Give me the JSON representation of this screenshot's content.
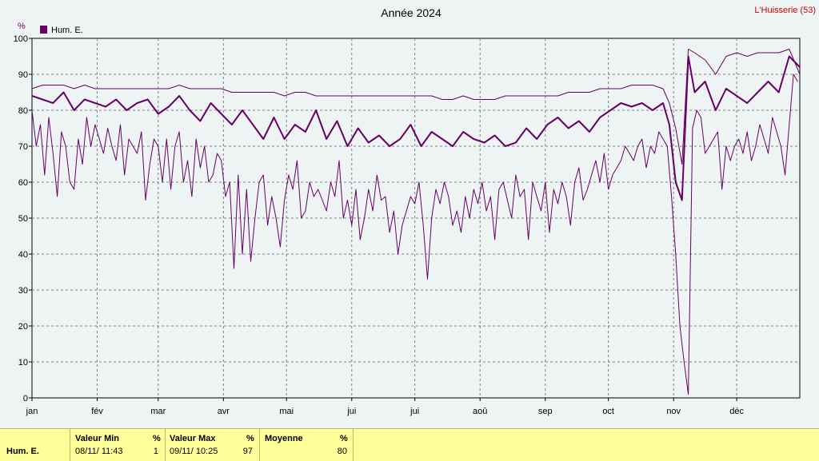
{
  "chart_data": {
    "type": "line",
    "title": "Année 2024",
    "site_label": "L'Huisserie (53)",
    "unit_label": "%",
    "legend": [
      {
        "name": "Hum. E.",
        "color": "#660066"
      }
    ],
    "ylim": [
      0,
      100
    ],
    "yticks": [
      0,
      10,
      20,
      30,
      40,
      50,
      60,
      70,
      80,
      90,
      100
    ],
    "xlim": [
      0,
      365
    ],
    "months": [
      "jan",
      "fév",
      "mar",
      "avr",
      "mai",
      "jui",
      "jui",
      "aoû",
      "sep",
      "oct",
      "nov",
      "déc"
    ],
    "month_starts": [
      0,
      31,
      60,
      91,
      121,
      152,
      182,
      213,
      244,
      274,
      305,
      335
    ],
    "colors": {
      "series": "#660066",
      "grid": "#808080",
      "site": "#cc0000",
      "axis": "#000000"
    },
    "grid": true,
    "series": [
      {
        "name": "Hum. E.",
        "role": "daily mean",
        "x": [
          0,
          5,
          10,
          15,
          20,
          25,
          30,
          35,
          40,
          45,
          50,
          55,
          60,
          65,
          70,
          75,
          80,
          85,
          90,
          95,
          100,
          105,
          110,
          115,
          120,
          125,
          130,
          135,
          140,
          145,
          150,
          155,
          160,
          165,
          170,
          175,
          180,
          185,
          190,
          195,
          200,
          205,
          210,
          215,
          220,
          225,
          230,
          235,
          240,
          245,
          250,
          255,
          260,
          265,
          270,
          275,
          280,
          285,
          290,
          295,
          300,
          303,
          306,
          309,
          312,
          315,
          320,
          325,
          330,
          335,
          340,
          345,
          350,
          355,
          360,
          365
        ],
        "values": [
          84,
          83,
          82,
          85,
          80,
          83,
          82,
          81,
          83,
          80,
          82,
          83,
          79,
          81,
          84,
          80,
          77,
          82,
          79,
          76,
          80,
          76,
          72,
          78,
          72,
          76,
          74,
          80,
          72,
          77,
          70,
          75,
          71,
          73,
          70,
          72,
          76,
          70,
          74,
          72,
          70,
          74,
          72,
          71,
          73,
          70,
          71,
          75,
          72,
          76,
          78,
          75,
          77,
          74,
          78,
          80,
          82,
          81,
          82,
          80,
          82,
          76,
          60,
          55,
          95,
          85,
          88,
          80,
          86,
          84,
          82,
          85,
          88,
          85,
          95,
          92
        ]
      },
      {
        "name": "Hum. E.",
        "role": "daily maximum",
        "x": [
          0,
          5,
          10,
          15,
          20,
          25,
          30,
          35,
          40,
          45,
          50,
          55,
          60,
          65,
          70,
          75,
          80,
          85,
          90,
          95,
          100,
          105,
          110,
          115,
          120,
          125,
          130,
          135,
          140,
          145,
          150,
          155,
          160,
          165,
          170,
          175,
          180,
          185,
          190,
          195,
          200,
          205,
          210,
          215,
          220,
          225,
          230,
          235,
          240,
          245,
          250,
          255,
          260,
          265,
          270,
          275,
          280,
          285,
          290,
          295,
          300,
          303,
          306,
          309,
          312,
          315,
          320,
          325,
          330,
          335,
          340,
          345,
          350,
          355,
          360,
          365
        ],
        "values": [
          86,
          87,
          87,
          87,
          86,
          87,
          86,
          86,
          86,
          86,
          86,
          86,
          86,
          86,
          87,
          86,
          86,
          86,
          86,
          85,
          85,
          85,
          85,
          85,
          84,
          85,
          85,
          84,
          84,
          84,
          84,
          84,
          84,
          84,
          84,
          84,
          84,
          84,
          84,
          83,
          83,
          84,
          83,
          83,
          83,
          84,
          84,
          84,
          84,
          84,
          84,
          85,
          85,
          85,
          86,
          86,
          86,
          87,
          87,
          87,
          86,
          82,
          75,
          65,
          97,
          96,
          94,
          90,
          95,
          96,
          95,
          96,
          96,
          96,
          97,
          90
        ]
      },
      {
        "name": "Hum. E.",
        "role": "daily minimum",
        "x": [
          0,
          2,
          4,
          6,
          8,
          10,
          12,
          14,
          16,
          18,
          20,
          22,
          24,
          26,
          28,
          30,
          32,
          34,
          36,
          38,
          40,
          42,
          44,
          46,
          48,
          50,
          52,
          54,
          56,
          58,
          60,
          62,
          64,
          66,
          68,
          70,
          72,
          74,
          76,
          78,
          80,
          82,
          84,
          86,
          88,
          90,
          92,
          94,
          96,
          98,
          100,
          102,
          104,
          106,
          108,
          110,
          112,
          114,
          116,
          118,
          120,
          122,
          124,
          126,
          128,
          130,
          132,
          134,
          136,
          138,
          140,
          142,
          144,
          146,
          148,
          150,
          152,
          154,
          156,
          158,
          160,
          162,
          164,
          166,
          168,
          170,
          172,
          174,
          176,
          178,
          180,
          182,
          184,
          186,
          188,
          190,
          192,
          194,
          196,
          198,
          200,
          202,
          204,
          206,
          208,
          210,
          212,
          214,
          216,
          218,
          220,
          222,
          224,
          226,
          228,
          230,
          232,
          234,
          236,
          238,
          240,
          242,
          244,
          246,
          248,
          250,
          252,
          254,
          256,
          258,
          260,
          262,
          264,
          266,
          268,
          270,
          272,
          274,
          276,
          278,
          280,
          282,
          284,
          286,
          288,
          290,
          292,
          294,
          296,
          298,
          300,
          302,
          304,
          306,
          308,
          310,
          312,
          314,
          316,
          318,
          320,
          322,
          324,
          326,
          328,
          330,
          332,
          334,
          336,
          338,
          340,
          342,
          344,
          346,
          348,
          350,
          352,
          354,
          356,
          358,
          360,
          362,
          364
        ],
        "values": [
          80,
          70,
          76,
          62,
          78,
          68,
          56,
          74,
          70,
          60,
          58,
          72,
          65,
          78,
          70,
          76,
          72,
          68,
          75,
          70,
          66,
          76,
          62,
          72,
          70,
          68,
          74,
          55,
          65,
          72,
          70,
          60,
          72,
          58,
          70,
          74,
          60,
          66,
          56,
          72,
          64,
          70,
          60,
          62,
          68,
          66,
          56,
          60,
          36,
          62,
          40,
          58,
          38,
          50,
          60,
          62,
          48,
          56,
          50,
          42,
          55,
          62,
          58,
          66,
          50,
          52,
          60,
          56,
          58,
          55,
          52,
          60,
          56,
          66,
          50,
          55,
          48,
          58,
          44,
          50,
          58,
          52,
          62,
          55,
          56,
          46,
          52,
          40,
          48,
          52,
          56,
          54,
          60,
          48,
          33,
          50,
          58,
          54,
          60,
          56,
          48,
          52,
          46,
          56,
          50,
          58,
          54,
          60,
          52,
          56,
          44,
          58,
          60,
          55,
          50,
          62,
          56,
          58,
          44,
          60,
          56,
          52,
          60,
          46,
          58,
          54,
          60,
          56,
          48,
          60,
          64,
          55,
          58,
          62,
          66,
          60,
          68,
          58,
          62,
          64,
          66,
          70,
          68,
          66,
          70,
          72,
          64,
          70,
          68,
          74,
          72,
          70,
          56,
          40,
          20,
          10,
          1,
          75,
          80,
          78,
          68,
          70,
          72,
          74,
          58,
          70,
          66,
          70,
          72,
          68,
          74,
          66,
          70,
          76,
          72,
          68,
          78,
          74,
          70,
          62,
          76,
          90,
          88
        ]
      }
    ]
  },
  "footer": {
    "series_name": "Hum. E.",
    "min_label": "Valeur Min",
    "min_unit": "%",
    "min_date": "08/11/ 11:43",
    "min_value": "1",
    "max_label": "Valeur Max",
    "max_unit": "%",
    "max_date": "09/11/ 10:25",
    "max_value": "97",
    "avg_label": "Moyenne",
    "avg_unit": "%",
    "avg_value": "80"
  }
}
